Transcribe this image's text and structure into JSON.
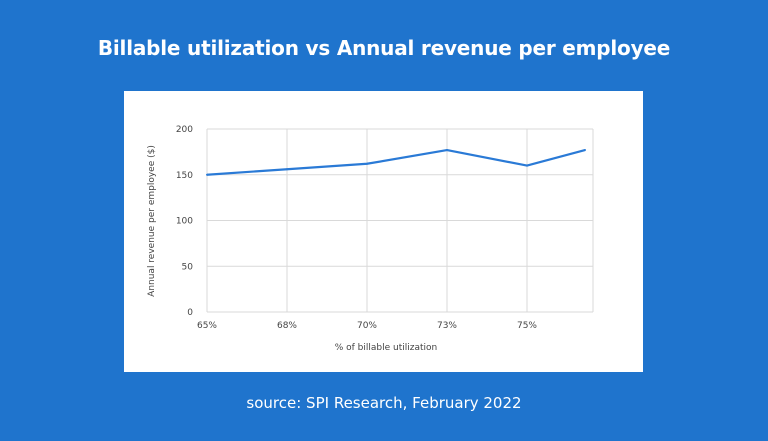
{
  "chart_data": {
    "type": "line",
    "title": "Billable utilization vs Annual revenue per employee",
    "xlabel": "% of billable utilization",
    "ylabel": "Annual revenue per employee ($)",
    "categories": [
      "65%",
      "68%",
      "70%",
      "73%",
      "75%",
      ""
    ],
    "values": [
      150,
      156,
      162,
      177,
      160,
      177
    ],
    "ylim": [
      0,
      200
    ],
    "yticks": [
      0,
      50,
      100,
      150,
      200
    ],
    "grid": true,
    "series_color": "#2a7ad6"
  },
  "source": "source: SPI Research, February 2022"
}
